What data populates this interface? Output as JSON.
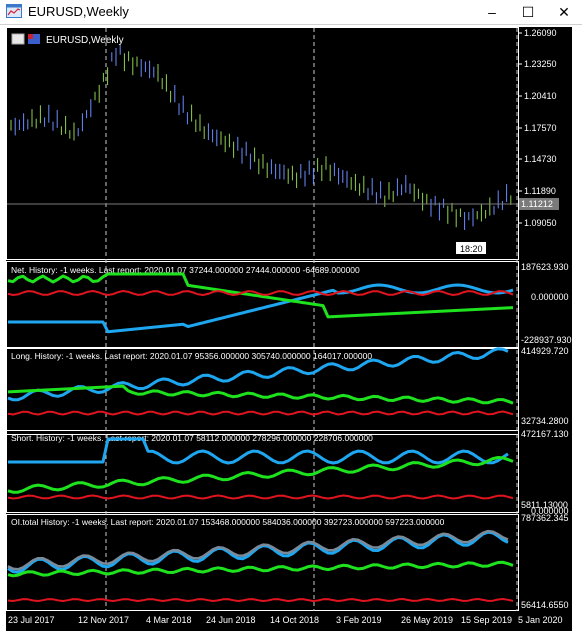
{
  "window": {
    "title": "EURUSD,Weekly",
    "minimize": "–",
    "maximize": "☐",
    "close": "✕"
  },
  "main_chart": {
    "label": "EURUSD,Weekly",
    "price_ticks": [
      "1.26090",
      "1.23250",
      "1.20410",
      "1.17570",
      "1.14730",
      "1.11890",
      "1.09050"
    ],
    "current_price": "1.11212",
    "time_marker": "18:20"
  },
  "indicators": [
    {
      "caption": "Net. History: -1 weeks. Last report: 2020.01.07     37244.000000  27444.000000  -64689.000000",
      "scale_top": "187623.930",
      "scale_mid": "0.000000",
      "scale_bottom": "-228937.930"
    },
    {
      "caption": "Long. History: -1 weeks. Last report: 2020.01.07     95356.000000  305740.000000  164017.000000",
      "scale_top": "414929.720",
      "scale_bottom": "32734.2800"
    },
    {
      "caption": "Short. History: -1 weeks. Last report: 2020.01.07     58112.000000  278296.000000  228706.000000",
      "scale_top": "472167.130",
      "scale_bottom": "5811.13000"
    },
    {
      "caption": "OI.total History: -1 weeks. Last report: 2020.01.07     153468.000000  584036.000000  392723.000000  597223.000000",
      "scale_top": "787362.345",
      "scale_mid": "0.000000",
      "scale_bottom": "56414.6550"
    }
  ],
  "time_axis": [
    "23 Jul 2017",
    "12 Nov 2017",
    "4 Mar 2018",
    "24 Jun 2018",
    "14 Oct 2018",
    "3 Feb 2019",
    "26 May 2019",
    "15 Sep 2019",
    "5 Jan 2020"
  ],
  "colors": {
    "price_bar": "#8fd14f",
    "price_bar_down": "#6a8cff",
    "blue": "#1ea7f0",
    "green": "#1ee21e",
    "red": "#e0141e",
    "gray": "#7a8a99",
    "price_line": "#7a7a7a"
  }
}
